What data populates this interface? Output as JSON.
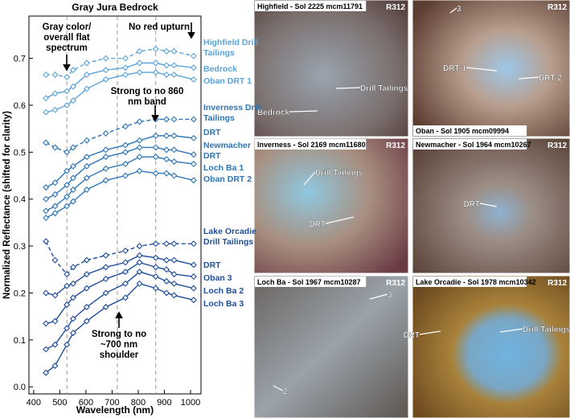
{
  "chart_data": {
    "type": "line",
    "title": "Gray Jura Bedrock",
    "x_label": "Wavelength (nm)",
    "y_label": "Normalized Reflectance (shifted for clarity)",
    "x": [
      447,
      482,
      527,
      551,
      603,
      676,
      751,
      805,
      867,
      908,
      937,
      1012
    ],
    "xlim": [
      382,
      1040
    ],
    "xticks": [
      400,
      500,
      600,
      700,
      800,
      900,
      1000
    ],
    "ylim": [
      -0.015,
      0.79
    ],
    "yticks": [
      {
        "value": 0,
        "label": "0.0"
      },
      {
        "value": 0.1,
        "label": "0.1"
      },
      {
        "value": 0.2,
        "label": "0.2"
      },
      {
        "value": 0.3,
        "label": "0.3"
      },
      {
        "value": 0.4,
        "label": "0.4"
      },
      {
        "value": 0.5,
        "label": "0.5"
      },
      {
        "value": 0.6,
        "label": "0.6"
      },
      {
        "value": 0.7,
        "label": "0.7"
      }
    ],
    "reference_lines": [
      527,
      720,
      867
    ],
    "annotations": [
      "Gray color/ overall flat spectrum",
      "No red upturn",
      "Strong to no 860 nm band",
      "Strong to no ~700 nm shoulder"
    ],
    "series": [
      {
        "name": "Highfield Drill Tailings",
        "color": "#5ba3d9",
        "line_style": "dashed",
        "values": [
          0.665,
          0.665,
          0.66,
          0.675,
          0.69,
          0.7,
          0.7,
          0.715,
          0.72,
          0.715,
          0.715,
          0.705
        ]
      },
      {
        "name": "Bedrock",
        "color": "#5ba3d9",
        "line_style": "solid",
        "values": [
          0.615,
          0.625,
          0.63,
          0.64,
          0.665,
          0.675,
          0.68,
          0.69,
          0.69,
          0.685,
          0.685,
          0.68
        ]
      },
      {
        "name": "Oban DRT 1",
        "color": "#5ba3d9",
        "line_style": "solid",
        "values": [
          0.585,
          0.59,
          0.6,
          0.61,
          0.635,
          0.655,
          0.665,
          0.67,
          0.67,
          0.665,
          0.665,
          0.655
        ]
      },
      {
        "name": "Inverness Drill Tailings",
        "color": "#2e75b6",
        "line_style": "dashed",
        "values": [
          0.52,
          0.51,
          0.5,
          0.51,
          0.525,
          0.54,
          0.555,
          0.565,
          0.57,
          0.57,
          0.57,
          0.57
        ]
      },
      {
        "name": "DRT",
        "color": "#2e75b6",
        "line_style": "solid",
        "values": [
          0.425,
          0.435,
          0.46,
          0.47,
          0.49,
          0.505,
          0.515,
          0.525,
          0.535,
          0.535,
          0.535,
          0.53
        ]
      },
      {
        "name": "Newmacher DRT",
        "color": "#2e75b6",
        "line_style": "solid",
        "values": [
          0.4,
          0.41,
          0.43,
          0.445,
          0.47,
          0.49,
          0.5,
          0.51,
          0.51,
          0.505,
          0.505,
          0.495
        ]
      },
      {
        "name": "Loch Ba 1",
        "color": "#2e75b6",
        "line_style": "solid",
        "values": [
          0.375,
          0.385,
          0.405,
          0.42,
          0.445,
          0.465,
          0.475,
          0.49,
          0.49,
          0.485,
          0.48,
          0.475
        ]
      },
      {
        "name": "Oban DRT 2",
        "color": "#2e75b6",
        "line_style": "solid",
        "values": [
          0.36,
          0.37,
          0.385,
          0.395,
          0.42,
          0.44,
          0.45,
          0.46,
          0.455,
          0.455,
          0.45,
          0.44
        ]
      },
      {
        "name": "Lake Orcadie Drill Tailings",
        "color": "#1f4e99",
        "line_style": "dashed",
        "values": [
          0.31,
          0.27,
          0.24,
          0.255,
          0.27,
          0.28,
          0.29,
          0.3,
          0.305,
          0.305,
          0.305,
          0.305
        ]
      },
      {
        "name": "DRT",
        "color": "#1f4e99",
        "line_style": "solid",
        "values": [
          0.2,
          0.195,
          0.215,
          0.22,
          0.24,
          0.255,
          0.265,
          0.28,
          0.275,
          0.27,
          0.27,
          0.26
        ]
      },
      {
        "name": "Oban 3",
        "color": "#1f4e99",
        "line_style": "solid",
        "values": [
          0.135,
          0.14,
          0.175,
          0.19,
          0.21,
          0.23,
          0.245,
          0.265,
          0.255,
          0.25,
          0.24,
          0.235
        ]
      },
      {
        "name": "Loch Ba 2",
        "color": "#1f4e99",
        "line_style": "solid",
        "values": [
          0.08,
          0.09,
          0.125,
          0.145,
          0.17,
          0.2,
          0.22,
          0.245,
          0.235,
          0.225,
          0.22,
          0.21
        ]
      },
      {
        "name": "Loch Ba 3",
        "color": "#1f4e99",
        "line_style": "solid",
        "values": [
          0.03,
          0.045,
          0.09,
          0.115,
          0.14,
          0.17,
          0.19,
          0.22,
          0.21,
          0.2,
          0.195,
          0.185
        ]
      }
    ]
  },
  "panels": [
    {
      "title": "Highfield - Sol 2225 mcm11791",
      "tag": "R312",
      "labels": [
        "Drill Tailings",
        "Bedrock"
      ]
    },
    {
      "title": "Oban - Sol 1905 mcm09994",
      "tag": "R312",
      "labels": [
        "3",
        "DRT 1",
        "DRT 2"
      ]
    },
    {
      "title": "Inverness - Sol 2169 mcm11680",
      "tag": "R312",
      "labels": [
        "Drill Tailings",
        "DRT"
      ]
    },
    {
      "title": "Newmacher - Sol 1964 mcm10267",
      "tag": "R312",
      "labels": [
        "DRT"
      ]
    },
    {
      "title": "Loch Ba - Sol 1967 mcm10287",
      "tag": "R312",
      "labels": [
        "3",
        "2"
      ]
    },
    {
      "title": "Lake Orcadie - Sol 1978 mcm10342",
      "tag": "R312",
      "labels": [
        "DRT",
        "Drill Tailings"
      ]
    }
  ]
}
